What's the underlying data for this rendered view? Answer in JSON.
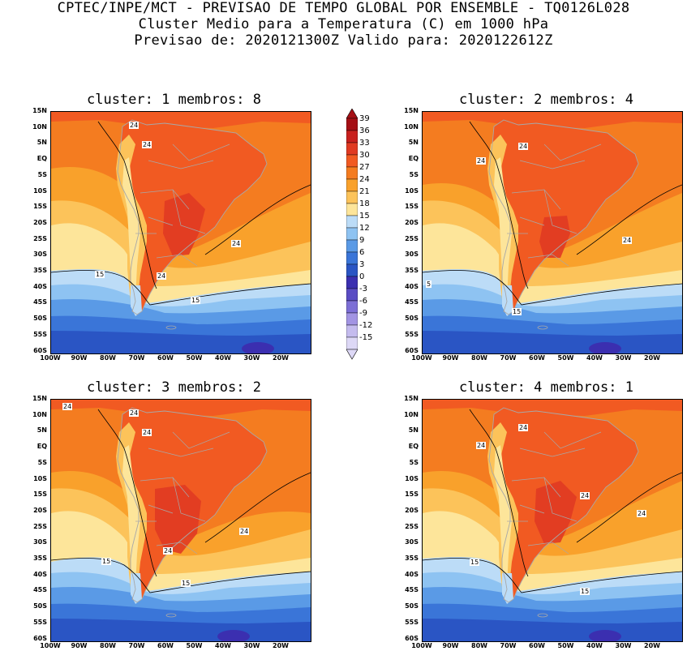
{
  "header": {
    "line1": "CPTEC/INPE/MCT - PREVISAO DE TEMPO GLOBAL POR ENSEMBLE - TQ0126L028",
    "line2": "Cluster Medio para a Temperatura (C) em 1000 hPa",
    "line3": "Previsao de: 2020121300Z   Valido para: 2020122612Z"
  },
  "lat_labels": [
    "15N",
    "10N",
    "5N",
    "EQ",
    "5S",
    "10S",
    "15S",
    "20S",
    "25S",
    "30S",
    "35S",
    "40S",
    "45S",
    "50S",
    "55S",
    "60S"
  ],
  "lon_labels": [
    "100W",
    "90W",
    "80W",
    "70W",
    "60W",
    "50W",
    "40W",
    "30W",
    "20W"
  ],
  "colorbar": {
    "labels": [
      "39",
      "36",
      "33",
      "30",
      "27",
      "24",
      "21",
      "18",
      "15",
      "12",
      "9",
      "6",
      "3",
      "0",
      "-3",
      "-6",
      "-9",
      "-12",
      "-15"
    ],
    "colors": [
      "#a50f15",
      "#c8201e",
      "#e03a22",
      "#f15a22",
      "#f47c20",
      "#f9a12b",
      "#fcc35a",
      "#fde59a",
      "#bcdcf7",
      "#8ec3f2",
      "#5a9ae6",
      "#3a75d8",
      "#2a55c4",
      "#3b2fb0",
      "#5a4cc4",
      "#7d6fd6",
      "#a294e3",
      "#c4bbee",
      "#ddd8f6"
    ]
  },
  "panels": [
    {
      "title": "cluster: 1   membros: 8",
      "labels": [
        "24",
        "24",
        "24",
        "24",
        "15",
        "15"
      ]
    },
    {
      "title": "cluster: 2   membros: 4",
      "labels": [
        "24",
        "24",
        "24",
        "5",
        "15"
      ]
    },
    {
      "title": "cluster: 3   membros: 2",
      "labels": [
        "24",
        "24",
        "24",
        "24",
        "24",
        "15",
        "15"
      ]
    },
    {
      "title": "cluster: 4   membros: 1",
      "labels": [
        "24",
        "24",
        "24",
        "24",
        "15",
        "15"
      ]
    }
  ]
}
